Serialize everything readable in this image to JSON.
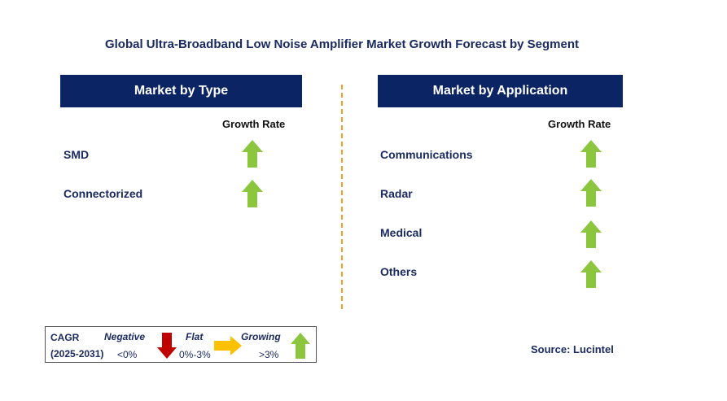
{
  "title": "Global Ultra-Broadband Low Noise Amplifier Market Growth Forecast by Segment",
  "left_panel": {
    "header": "Market by Type",
    "growth_rate_label": "Growth Rate",
    "items": [
      {
        "label": "SMD",
        "trend": "growing"
      },
      {
        "label": "Connectorized",
        "trend": "growing"
      }
    ]
  },
  "right_panel": {
    "header": "Market by Application",
    "growth_rate_label": "Growth Rate",
    "items": [
      {
        "label": "Communications",
        "trend": "growing"
      },
      {
        "label": "Radar",
        "trend": "growing"
      },
      {
        "label": "Medical",
        "trend": "growing"
      },
      {
        "label": "Others",
        "trend": "growing"
      }
    ]
  },
  "legend": {
    "cagr": "CAGR",
    "period": "(2025-2031)",
    "negative_label": "Negative",
    "negative_range": "<0%",
    "flat_label": "Flat",
    "flat_range": "0%-3%",
    "growing_label": "Growing",
    "growing_range": ">3%"
  },
  "source": "Source: Lucintel",
  "colors": {
    "header_bg": "#0b2463",
    "growing": "#8cc63f",
    "negative": "#c00000",
    "flat": "#ffc000",
    "divider": "#f0a020"
  }
}
